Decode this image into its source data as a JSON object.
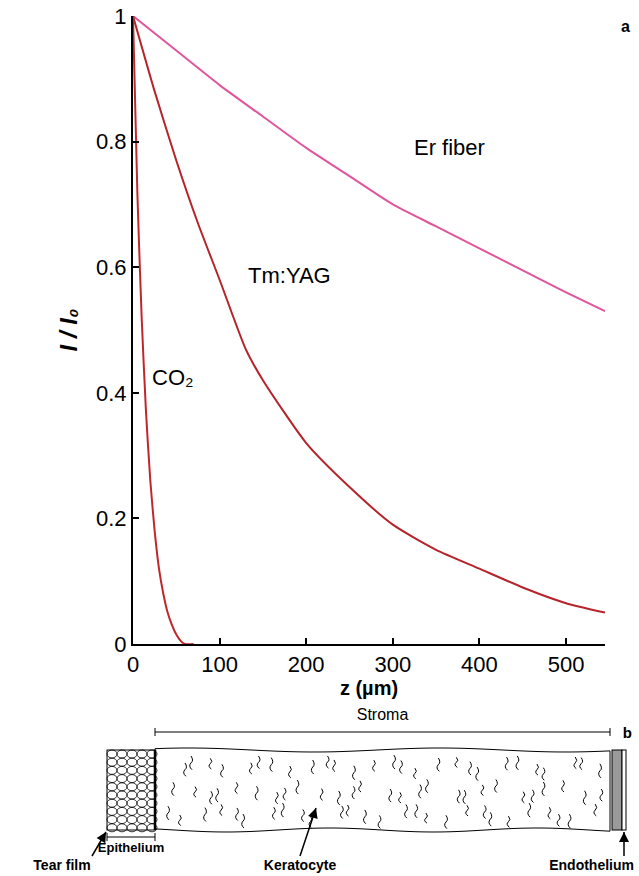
{
  "chart_data": {
    "type": "line",
    "panel_label": "a",
    "x_label": "z (µm)",
    "y_label": "I / I₀",
    "xlim": [
      0,
      545
    ],
    "ylim": [
      0,
      1
    ],
    "xticks": [
      0,
      100,
      200,
      300,
      400,
      500
    ],
    "yticks": [
      0,
      0.2,
      0.4,
      0.6,
      0.8,
      1
    ],
    "grid": false,
    "series": [
      {
        "name": "Er fiber",
        "color": "#e0559b",
        "label_at": [
          366,
          0.79
        ],
        "x": [
          0,
          50,
          100,
          150,
          200,
          250,
          300,
          350,
          400,
          450,
          500,
          545
        ],
        "values": [
          1,
          0.945,
          0.89,
          0.84,
          0.79,
          0.745,
          0.7,
          0.665,
          0.63,
          0.595,
          0.56,
          0.53
        ]
      },
      {
        "name": "Tm:YAG",
        "color": "#b5242a",
        "label_at": [
          181,
          0.586
        ],
        "x": [
          0,
          25,
          50,
          75,
          100,
          130,
          150,
          200,
          250,
          300,
          350,
          400,
          450,
          500,
          545
        ],
        "values": [
          1,
          0.88,
          0.77,
          0.67,
          0.58,
          0.47,
          0.42,
          0.32,
          0.25,
          0.19,
          0.15,
          0.12,
          0.09,
          0.065,
          0.05
        ]
      },
      {
        "name": "CO₂",
        "color": "#c0272d",
        "label_at": [
          20,
          0.425
        ],
        "x": [
          0,
          5,
          10,
          15,
          20,
          25,
          30,
          35,
          40,
          45,
          50,
          55,
          60,
          70
        ],
        "values": [
          1,
          0.72,
          0.52,
          0.37,
          0.26,
          0.18,
          0.12,
          0.08,
          0.05,
          0.03,
          0.015,
          0.005,
          0,
          0
        ]
      }
    ]
  },
  "diagram": {
    "panel_label": "b",
    "stroma": "Stroma",
    "epithelium": "Epithelium",
    "tear_film": "Tear film",
    "keratocyte": "Keratocyte",
    "endothelium": "Endothelium"
  }
}
